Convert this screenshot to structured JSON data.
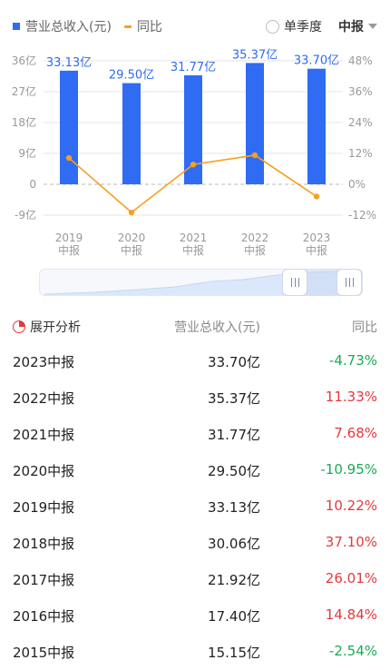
{
  "legend": {
    "bar_label": "营业总收入(元)",
    "line_label": "同比"
  },
  "controls": {
    "quarter_label": "单季度",
    "period_label": "中报"
  },
  "chart_data": {
    "type": "bar+line",
    "categories": [
      {
        "year": "2019",
        "type": "中报"
      },
      {
        "year": "2020",
        "type": "中报"
      },
      {
        "year": "2021",
        "type": "中报"
      },
      {
        "year": "2022",
        "type": "中报"
      },
      {
        "year": "2023",
        "type": "中报"
      }
    ],
    "series": [
      {
        "name": "营业总收入(元)",
        "kind": "bar",
        "axis": "left",
        "values": [
          33.13,
          29.5,
          31.77,
          35.37,
          33.7
        ],
        "labels": [
          "33.13亿",
          "29.50亿",
          "31.77亿",
          "35.37亿",
          "33.70亿"
        ],
        "color": "#2f6bf3"
      },
      {
        "name": "同比",
        "kind": "line",
        "axis": "right",
        "values": [
          10.22,
          -10.95,
          7.68,
          11.33,
          -4.73
        ],
        "color": "#f5a01f"
      }
    ],
    "y_left": {
      "ticks": [
        36,
        27,
        18,
        9,
        0,
        -9
      ],
      "tick_labels": [
        "36亿",
        "27亿",
        "18亿",
        "9亿",
        "0",
        "-9亿"
      ],
      "range": [
        -9,
        36
      ]
    },
    "y_right": {
      "ticks": [
        48,
        36,
        24,
        12,
        0,
        -12
      ],
      "tick_labels": [
        "48%",
        "36%",
        "24%",
        "12%",
        "0%",
        "-12%"
      ],
      "range": [
        -12,
        48
      ]
    },
    "grid": true
  },
  "table": {
    "header": {
      "analysis_label": "展开分析",
      "revenue_label": "营业总收入(元)",
      "yoy_label": "同比"
    },
    "rows": [
      {
        "period": "2023中报",
        "revenue": "33.70亿",
        "yoy": "-4.73%"
      },
      {
        "period": "2022中报",
        "revenue": "35.37亿",
        "yoy": "11.33%"
      },
      {
        "period": "2021中报",
        "revenue": "31.77亿",
        "yoy": "7.68%"
      },
      {
        "period": "2020中报",
        "revenue": "29.50亿",
        "yoy": "-10.95%"
      },
      {
        "period": "2019中报",
        "revenue": "33.13亿",
        "yoy": "10.22%"
      },
      {
        "period": "2018中报",
        "revenue": "30.06亿",
        "yoy": "37.10%"
      },
      {
        "period": "2017中报",
        "revenue": "21.92亿",
        "yoy": "26.01%"
      },
      {
        "period": "2016中报",
        "revenue": "17.40亿",
        "yoy": "14.84%"
      },
      {
        "period": "2015中报",
        "revenue": "15.15亿",
        "yoy": "-2.54%"
      }
    ]
  },
  "colors": {
    "bar": "#2f6bf3",
    "line": "#f5a01f",
    "up": "#e4393c",
    "down": "#1aaa55"
  }
}
